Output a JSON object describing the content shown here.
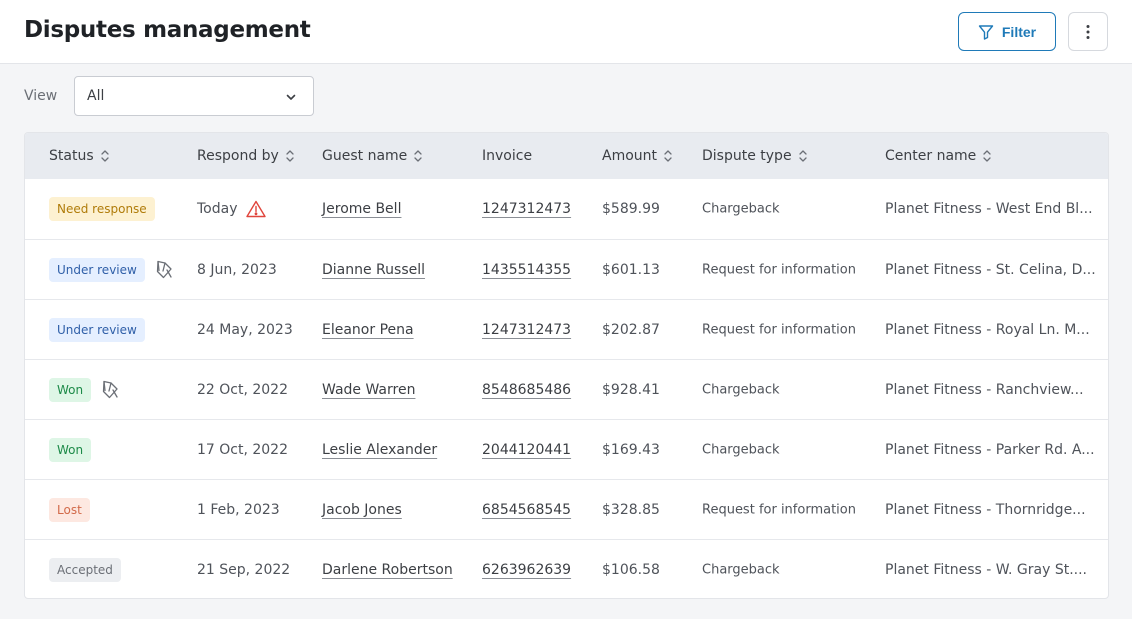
{
  "header": {
    "title": "Disputes management",
    "filter_label": "Filter"
  },
  "view": {
    "label": "View",
    "selected": "All"
  },
  "columns": [
    "Status",
    "Respond by",
    "Guest name",
    "Invoice",
    "Amount",
    "Dispute type",
    "Center name"
  ],
  "rows": [
    {
      "status": "Need response",
      "status_kind": "need",
      "icon": "",
      "respond_by": "Today",
      "warn": true,
      "guest": "Jerome Bell",
      "invoice": "1247312473",
      "amount": "$589.99",
      "type": "Chargeback",
      "center": "Planet Fitness - West End Bl..."
    },
    {
      "status": "Under review",
      "status_kind": "review",
      "icon": "evidence-icon",
      "respond_by": "8 Jun, 2023",
      "warn": false,
      "guest": "Dianne Russell",
      "invoice": "1435514355",
      "amount": "$601.13",
      "type": "Request for information",
      "center": "Planet Fitness - St. Celina, D..."
    },
    {
      "status": "Under review",
      "status_kind": "review",
      "icon": "",
      "respond_by": "24 May, 2023",
      "warn": false,
      "guest": "Eleanor Pena",
      "invoice": "1247312473",
      "amount": "$202.87",
      "type": "Request for information",
      "center": "Planet Fitness - Royal Ln. M..."
    },
    {
      "status": "Won",
      "status_kind": "won",
      "icon": "evidence-icon",
      "respond_by": "22 Oct, 2022",
      "warn": false,
      "guest": "Wade Warren",
      "invoice": "8548685486",
      "amount": "$928.41",
      "type": "Chargeback",
      "center": "Planet Fitness - Ranchview..."
    },
    {
      "status": "Won",
      "status_kind": "won",
      "icon": "",
      "respond_by": "17 Oct, 2022",
      "warn": false,
      "guest": "Leslie Alexander",
      "invoice": "2044120441",
      "amount": "$169.43",
      "type": "Chargeback",
      "center": "Planet Fitness - Parker Rd. A..."
    },
    {
      "status": "Lost",
      "status_kind": "lost",
      "icon": "",
      "respond_by": "1 Feb, 2023",
      "warn": false,
      "guest": "Jacob Jones",
      "invoice": "6854568545",
      "amount": "$328.85",
      "type": "Request for information",
      "center": "Planet Fitness - Thornridge..."
    },
    {
      "status": "Accepted",
      "status_kind": "accepted",
      "icon": "",
      "respond_by": "21 Sep, 2022",
      "warn": false,
      "guest": "Darlene Robertson",
      "invoice": "6263962639",
      "amount": "$106.58",
      "type": "Chargeback",
      "center": "Planet Fitness - W. Gray St...."
    }
  ],
  "colors": {
    "accent": "#1f7ab8",
    "warning": "#e0453c"
  }
}
